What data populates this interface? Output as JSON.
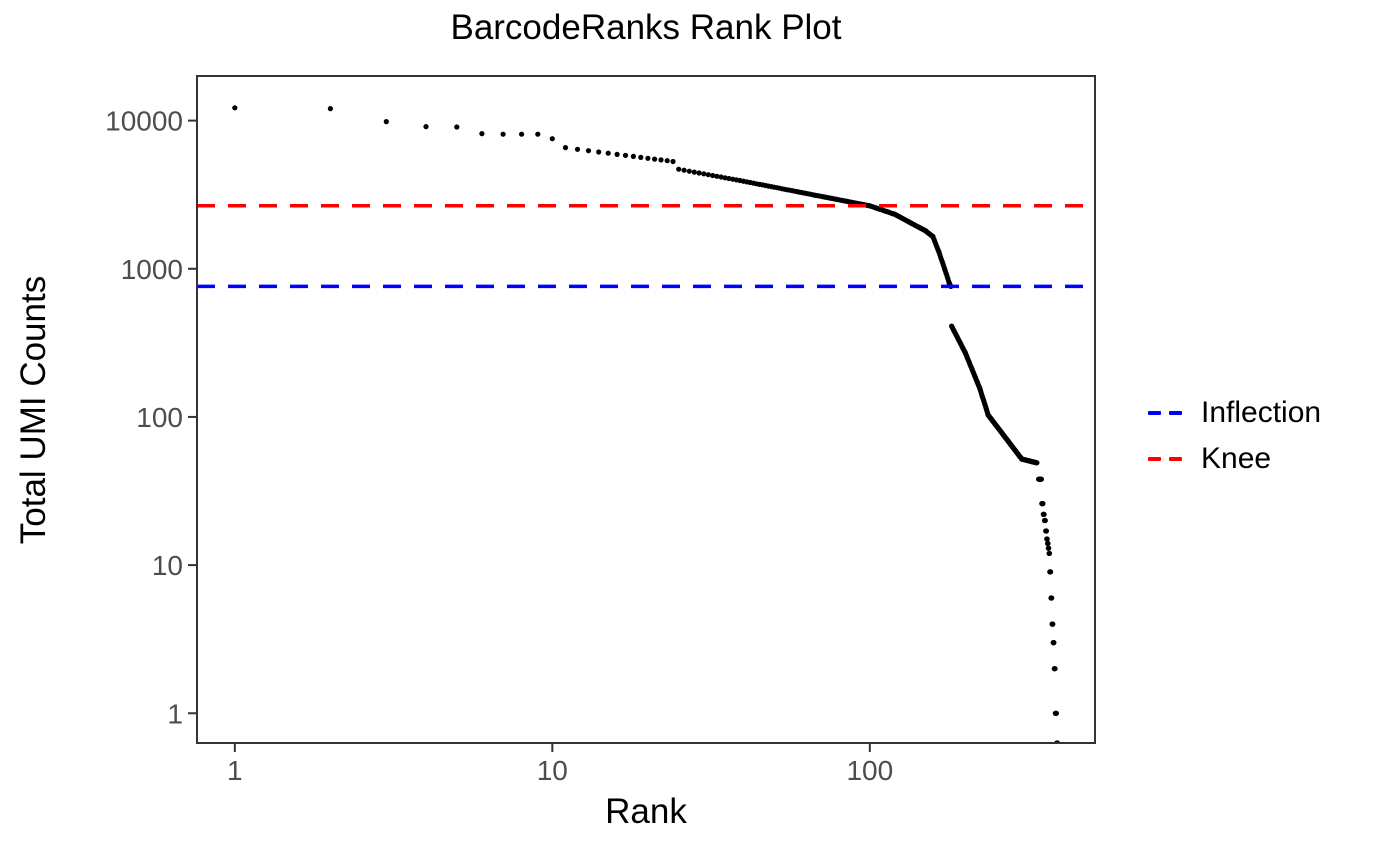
{
  "chart_data": {
    "type": "scatter",
    "title": "BarcodeRanks Rank Plot",
    "xlabel": "Rank",
    "ylabel": "Total UMI Counts",
    "x_scale": "log10",
    "y_scale": "log10",
    "xlim": [
      0.76,
      512
    ],
    "ylim": [
      0.63,
      20000
    ],
    "grid": false,
    "x_ticks": {
      "values": [
        1,
        10,
        100
      ],
      "labels": [
        "1",
        "10",
        "100"
      ]
    },
    "y_ticks": {
      "values": [
        1,
        10,
        100,
        1000,
        10000
      ],
      "labels": [
        "1",
        "10",
        "100",
        "1000",
        "10000"
      ]
    },
    "legend": {
      "position": "right",
      "items": [
        {
          "label": "Inflection",
          "color": "#0000FF",
          "linestyle": "dashed"
        },
        {
          "label": "Knee",
          "color": "#FF0000",
          "linestyle": "dashed"
        }
      ]
    },
    "hlines": [
      {
        "name": "Knee",
        "value": 2660,
        "color": "#FF0000",
        "linestyle": "dashed"
      },
      {
        "name": "Inflection",
        "value": 760,
        "color": "#0000FF",
        "linestyle": "dashed"
      }
    ],
    "point_color": "#000000",
    "colors": {
      "axis_text": "#4d4d4d",
      "panel_border": "#333333",
      "axis_title": "#000000"
    },
    "n_barcodes_approx": 390,
    "series_segments": [
      [
        1,
        1,
        12200,
        12200
      ],
      [
        2,
        2,
        12050,
        12050
      ],
      [
        3,
        3,
        9840,
        9840
      ],
      [
        4,
        4,
        9110,
        9110
      ],
      [
        5,
        5,
        9050,
        9050
      ],
      [
        6,
        6,
        8170,
        8170
      ],
      [
        7,
        9,
        8100,
        8100
      ],
      [
        10,
        10,
        7550,
        7550
      ],
      [
        11,
        11,
        6570,
        6570
      ],
      [
        12,
        24,
        6400,
        5300
      ],
      [
        25,
        40,
        4700,
        3900
      ],
      [
        40,
        100,
        3900,
        2660
      ],
      [
        100,
        120,
        2660,
        2330
      ],
      [
        120,
        150,
        2330,
        1800
      ],
      [
        150,
        158,
        1800,
        1650
      ],
      [
        158,
        165,
        1650,
        1300
      ],
      [
        165,
        172,
        1300,
        1000
      ],
      [
        172,
        178,
        1000,
        800
      ],
      [
        178,
        180,
        800,
        760
      ],
      [
        181,
        200,
        410,
        270
      ],
      [
        200,
        222,
        270,
        156
      ],
      [
        222,
        236,
        156,
        103
      ],
      [
        236,
        301,
        103,
        52
      ],
      [
        301,
        336,
        52,
        49
      ],
      [
        340,
        347,
        38,
        38
      ],
      [
        348,
        351,
        26,
        26
      ],
      [
        352,
        354,
        22,
        22
      ],
      [
        355,
        357,
        20,
        20
      ],
      [
        358,
        360,
        17,
        17
      ],
      [
        361,
        362,
        15,
        15
      ],
      [
        363,
        364,
        14,
        14
      ],
      [
        365,
        366,
        13,
        13
      ],
      [
        367,
        368,
        12,
        12
      ],
      [
        369,
        371,
        9,
        9
      ],
      [
        372,
        374,
        6,
        6
      ],
      [
        375,
        377,
        4,
        4
      ],
      [
        378,
        380,
        3,
        3
      ],
      [
        381,
        383,
        2,
        2
      ],
      [
        384,
        387,
        1,
        1
      ],
      [
        388,
        390,
        0.63,
        0.63
      ]
    ]
  }
}
